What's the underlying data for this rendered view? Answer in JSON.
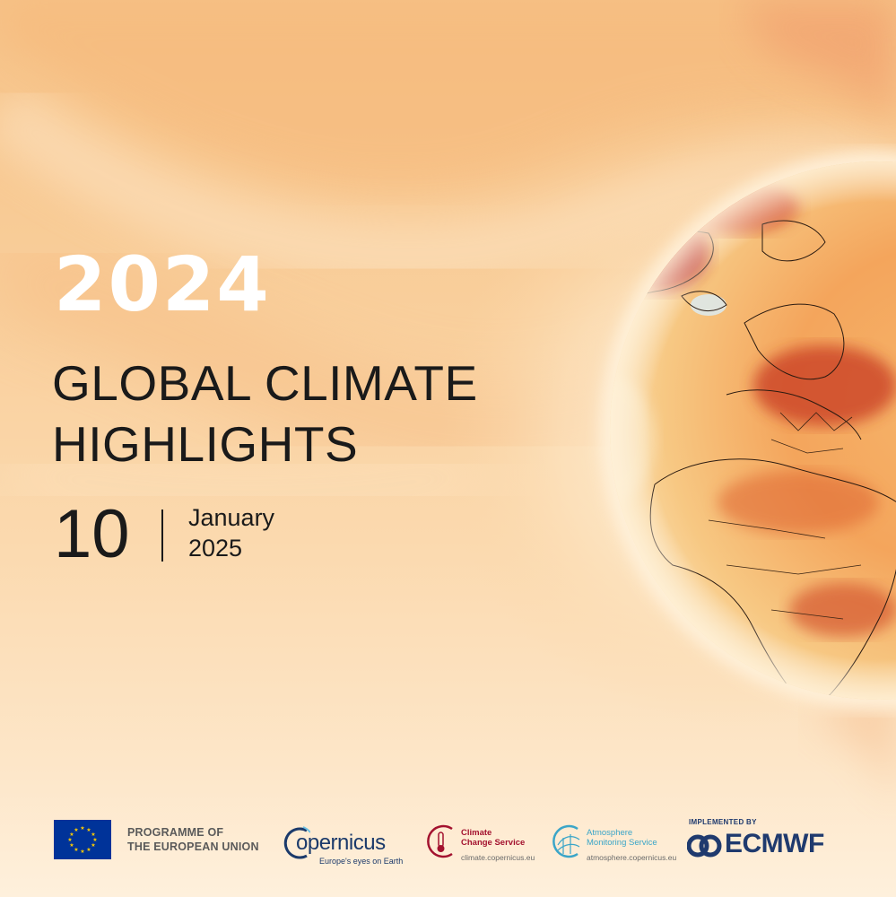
{
  "hero": {
    "year": "2024",
    "title_line1": "GLOBAL CLIMATE",
    "title_line2": "HIGHLIGHTS",
    "date_day": "10",
    "date_month": "January",
    "date_year": "2025"
  },
  "footer": {
    "eu_line1": "PROGRAMME OF",
    "eu_line2": "THE EUROPEAN UNION",
    "copernicus_name": "opernicus",
    "copernicus_tagline": "Europe's eyes on Earth",
    "c3s_line1": "Climate",
    "c3s_line2": "Change Service",
    "c3s_url": "climate.copernicus.eu",
    "cams_line1": "Atmosphere",
    "cams_line2": "Monitoring Service",
    "cams_url": "atmosphere.copernicus.eu",
    "ecmwf_implemented": "IMPLEMENTED BY",
    "ecmwf_name": "ECMWF"
  },
  "colors": {
    "background": "#f9c48c",
    "year_text": "#ffffff",
    "title_text": "#1a1a1a",
    "eu_blue": "#003399",
    "copernicus_blue": "#1b3a6b",
    "c3s_red": "#a3122f",
    "cams_cyan": "#3aa5c8",
    "ecmwf_blue": "#1f3a6e"
  }
}
